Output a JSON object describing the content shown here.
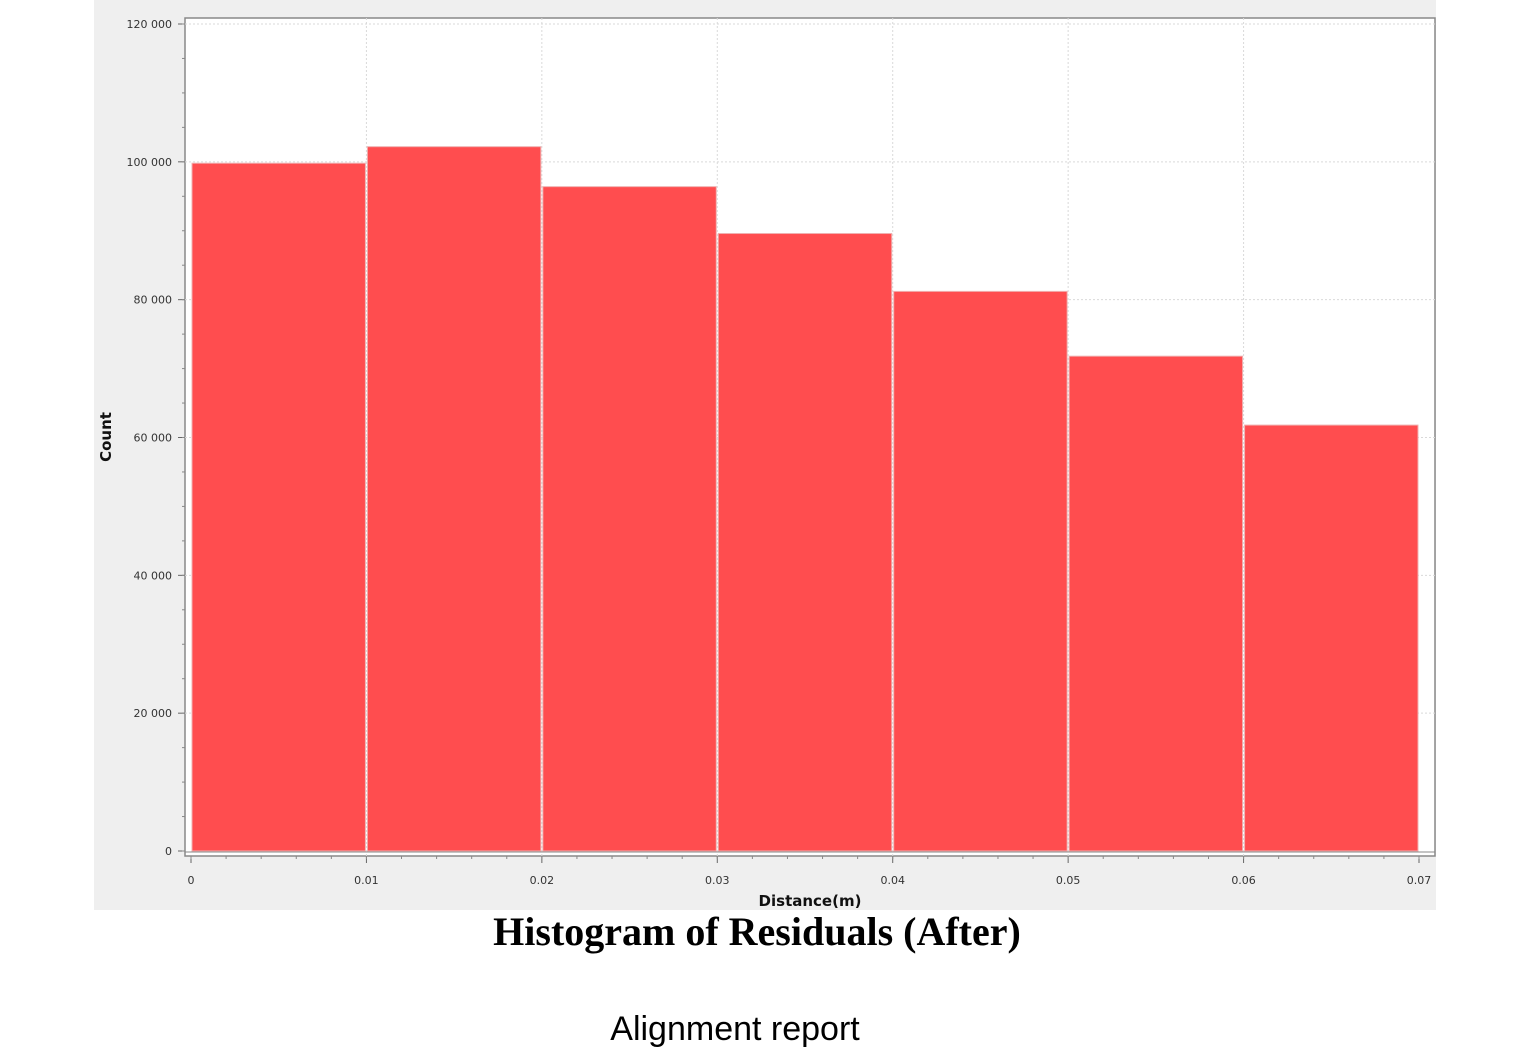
{
  "chart_data": {
    "type": "bar",
    "title": "Histogram of Residuals (After)",
    "xlabel": "Distance(m)",
    "ylabel": "Count",
    "bins": [
      [
        0,
        0.01
      ],
      [
        0.01,
        0.02
      ],
      [
        0.02,
        0.03
      ],
      [
        0.03,
        0.04
      ],
      [
        0.04,
        0.05
      ],
      [
        0.05,
        0.06
      ],
      [
        0.06,
        0.07
      ]
    ],
    "values": [
      99800,
      102200,
      96400,
      89600,
      81200,
      71800,
      61800
    ],
    "xlim": [
      0,
      0.07
    ],
    "ylim": [
      0,
      120000
    ],
    "x_ticks": [
      "0",
      "0.01",
      "0.02",
      "0.03",
      "0.04",
      "0.05",
      "0.06",
      "0.07"
    ],
    "y_ticks": [
      "0",
      "20 000",
      "40 000",
      "60 000",
      "80 000",
      "100 000",
      "120 000"
    ],
    "grid": true,
    "legend": "none",
    "bar_color": "#ff4d4f",
    "panel_color": "#efefef",
    "plot_color": "#ffffff"
  },
  "caption": "Alignment report"
}
